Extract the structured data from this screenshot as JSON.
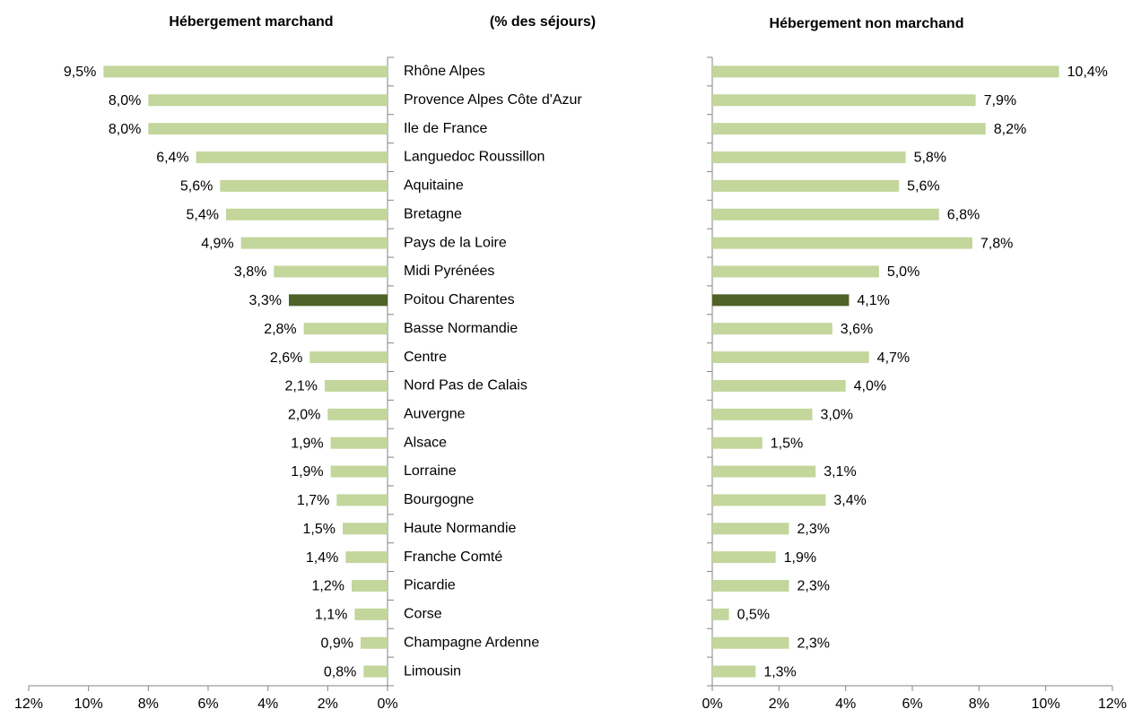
{
  "chart_data": [
    {
      "type": "bar",
      "title": "Hébergement marchand",
      "subtitle": "(% des séjours)",
      "categories": [
        "Rhône Alpes",
        "Provence Alpes Côte d'Azur",
        "Ile de France",
        "Languedoc Roussillon",
        "Aquitaine",
        "Bretagne",
        "Pays de la Loire",
        "Midi Pyrénées",
        "Poitou Charentes",
        "Basse Normandie",
        "Centre",
        "Nord Pas de Calais",
        "Auvergne",
        "Alsace",
        "Lorraine",
        "Bourgogne",
        "Haute Normandie",
        "Franche Comté",
        "Picardie",
        "Corse",
        "Champagne Ardenne",
        "Limousin"
      ],
      "values": [
        9.5,
        8.0,
        8.0,
        6.4,
        5.6,
        5.4,
        4.9,
        3.8,
        3.3,
        2.8,
        2.6,
        2.1,
        2.0,
        1.9,
        1.9,
        1.7,
        1.5,
        1.4,
        1.2,
        1.1,
        0.9,
        0.8
      ],
      "value_labels": [
        "9,5%",
        "8,0%",
        "8,0%",
        "6,4%",
        "5,6%",
        "5,4%",
        "4,9%",
        "3,8%",
        "3,3%",
        "2,8%",
        "2,6%",
        "2,1%",
        "2,0%",
        "1,9%",
        "1,9%",
        "1,7%",
        "1,5%",
        "1,4%",
        "1,2%",
        "1,1%",
        "0,9%",
        "0,8%"
      ],
      "colors": [
        "#c3d69b",
        "#c3d69b",
        "#c3d69b",
        "#c3d69b",
        "#c3d69b",
        "#c3d69b",
        "#c3d69b",
        "#c3d69b",
        "#4f6228",
        "#c3d69b",
        "#c3d69b",
        "#c3d69b",
        "#c3d69b",
        "#c3d69b",
        "#c3d69b",
        "#c3d69b",
        "#c3d69b",
        "#c3d69b",
        "#c3d69b",
        "#c3d69b",
        "#c3d69b",
        "#c3d69b"
      ],
      "xlim": [
        0,
        12
      ],
      "x_reversed": true,
      "xticks": [
        {
          "value": 0,
          "label": "0%"
        },
        {
          "value": 2,
          "label": "2%"
        },
        {
          "value": 4,
          "label": "4%"
        },
        {
          "value": 6,
          "label": "6%"
        },
        {
          "value": 8,
          "label": "8%"
        },
        {
          "value": 10,
          "label": "10%"
        },
        {
          "value": 12,
          "label": "12%"
        }
      ]
    },
    {
      "type": "bar",
      "title": "Hébergement non marchand",
      "values": [
        10.4,
        7.9,
        8.2,
        5.8,
        5.6,
        6.8,
        7.8,
        5.0,
        4.1,
        3.6,
        4.7,
        4.0,
        3.0,
        1.5,
        3.1,
        3.4,
        2.3,
        1.9,
        2.3,
        0.5,
        2.3,
        1.3
      ],
      "value_labels": [
        "10,4%",
        "7,9%",
        "8,2%",
        "5,8%",
        "5,6%",
        "6,8%",
        "7,8%",
        "5,0%",
        "4,1%",
        "3,6%",
        "4,7%",
        "4,0%",
        "3,0%",
        "1,5%",
        "3,1%",
        "3,4%",
        "2,3%",
        "1,9%",
        "2,3%",
        "0,5%",
        "2,3%",
        "1,3%"
      ],
      "colors": [
        "#c3d69b",
        "#c3d69b",
        "#c3d69b",
        "#c3d69b",
        "#c3d69b",
        "#c3d69b",
        "#c3d69b",
        "#c3d69b",
        "#4f6228",
        "#c3d69b",
        "#c3d69b",
        "#c3d69b",
        "#c3d69b",
        "#c3d69b",
        "#c3d69b",
        "#c3d69b",
        "#c3d69b",
        "#c3d69b",
        "#c3d69b",
        "#c3d69b",
        "#c3d69b",
        "#c3d69b"
      ],
      "xlim": [
        0,
        12
      ],
      "x_reversed": false,
      "xticks": [
        {
          "value": 0,
          "label": "0%"
        },
        {
          "value": 2,
          "label": "2%"
        },
        {
          "value": 4,
          "label": "4%"
        },
        {
          "value": 6,
          "label": "6%"
        },
        {
          "value": 8,
          "label": "8%"
        },
        {
          "value": 10,
          "label": "10%"
        },
        {
          "value": 12,
          "label": "12%"
        }
      ]
    }
  ]
}
